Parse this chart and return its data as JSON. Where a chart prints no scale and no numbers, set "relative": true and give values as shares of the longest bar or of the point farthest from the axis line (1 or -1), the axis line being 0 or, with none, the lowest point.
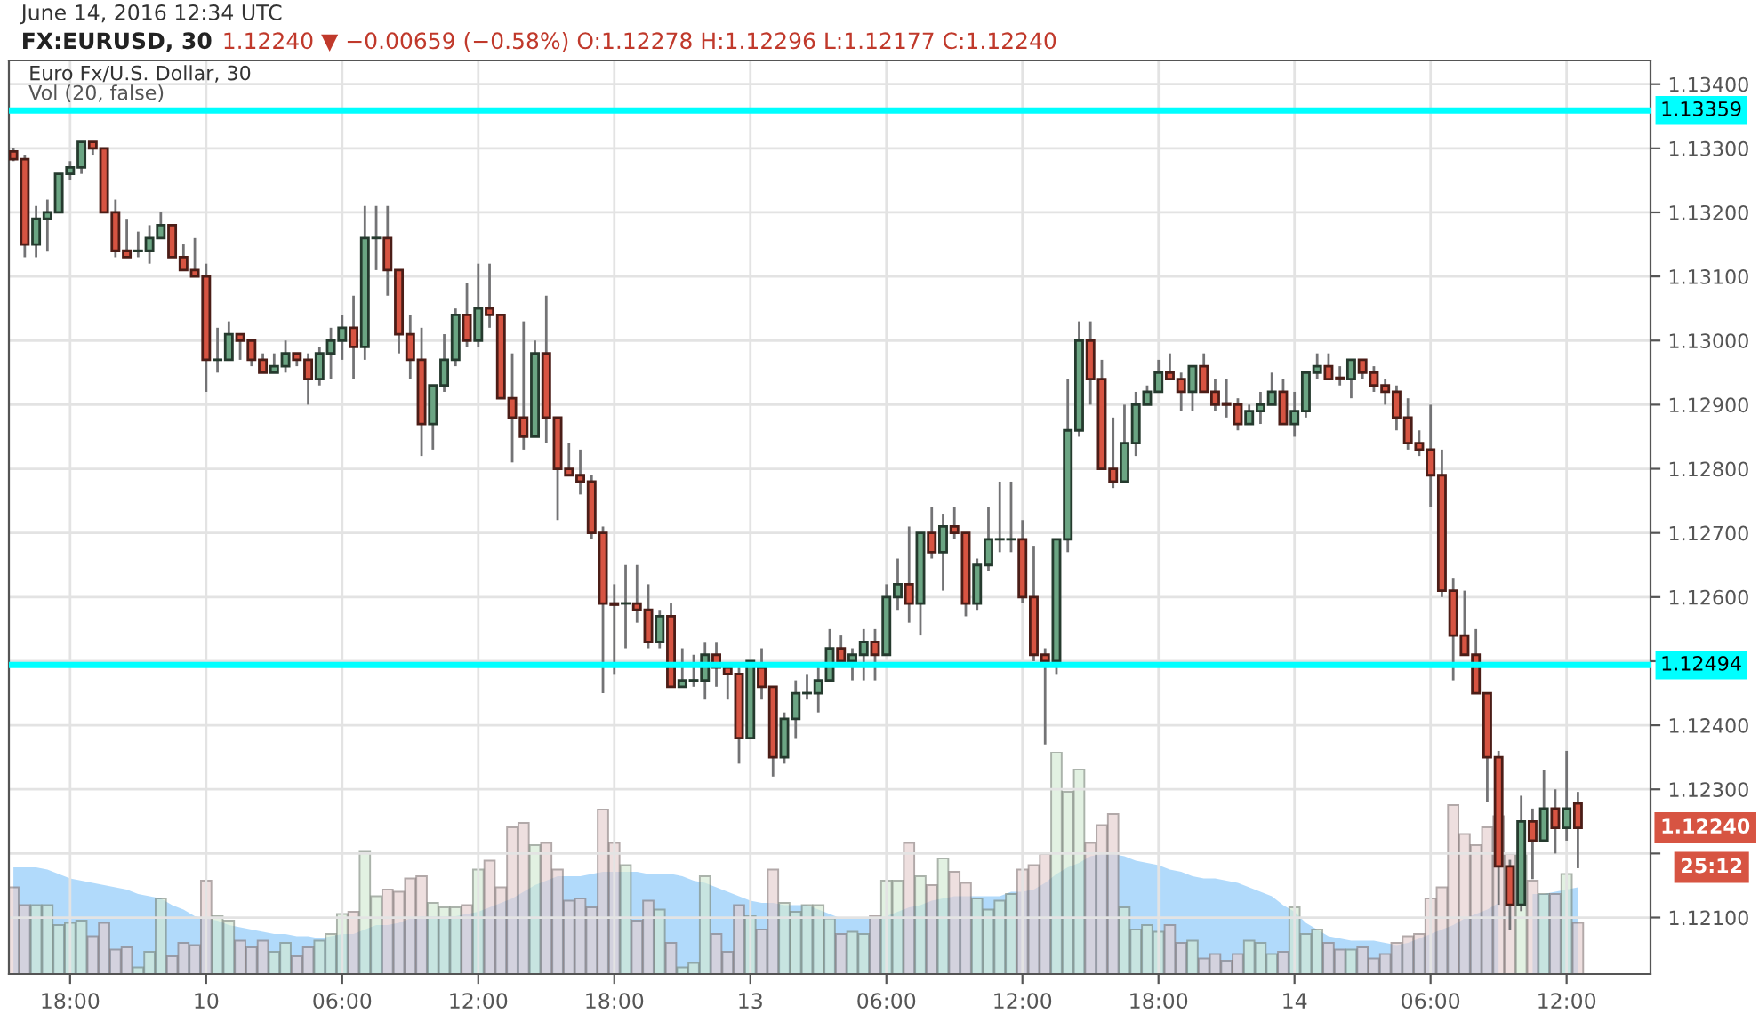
{
  "chart_data": [
    {
      "type": "candlestick",
      "title": "FX:EURUSD, 30",
      "subtitle": "1.12240 ▼ −0.00659 (−0.58%) O:1.12278 H:1.12296 L:1.12177 C:1.12240",
      "annotations": [
        "June 14, 2016 12:34 UTC",
        "Euro Fx/U.S. Dollar, 30",
        "Vol (20, false)",
        "1.12240",
        "25:12"
      ],
      "colors": [
        "#d75442",
        "#d75442",
        "#6ba583",
        "#6ba583",
        "#6ba583",
        "#6ba583",
        "#6ba583",
        "#d75442",
        "#d75442",
        "#d75442",
        "#d75442",
        "#6ba583",
        "#6ba583",
        "#6ba583",
        "#d75442",
        "#d75442",
        "#d75442",
        "#d75442",
        "#6ba583",
        "#6ba583",
        "#d75442",
        "#d75442",
        "#d75442",
        "#6ba583",
        "#6ba583",
        "#d75442",
        "#d75442",
        "#6ba583",
        "#6ba583",
        "#6ba583",
        "#d75442",
        "#6ba583",
        "#6ba583",
        "#d75442",
        "#d75442",
        "#d75442",
        "#d75442",
        "#6ba583",
        "#6ba583",
        "#6ba583",
        "#d75442",
        "#6ba583",
        "#d75442",
        "#d75442",
        "#d75442",
        "#d75442",
        "#6ba583",
        "#d75442",
        "#d75442",
        "#d75442",
        "#d75442",
        "#d75442",
        "#d75442",
        "#d75442",
        "#6ba583",
        "#d75442",
        "#d75442",
        "#6ba583",
        "#d75442",
        "#6ba583",
        "#6ba583",
        "#6ba583",
        "#d75442",
        "#d75442",
        "#d75442",
        "#6ba583",
        "#d75442",
        "#d75442",
        "#6ba583",
        "#6ba583",
        "#6ba583",
        "#6ba583",
        "#6ba583",
        "#d75442",
        "#6ba583",
        "#6ba583",
        "#d75442",
        "#6ba583",
        "#6ba583",
        "#d75442",
        "#6ba583",
        "#d75442",
        "#6ba583",
        "#d75442",
        "#d75442",
        "#6ba583",
        "#6ba583",
        "#6ba583",
        "#6ba583",
        "#d75442",
        "#d75442",
        "#d75442",
        "#6ba583",
        "#6ba583",
        "#6ba583",
        "#d75442",
        "#d75442",
        "#d75442",
        "#6ba583",
        "#6ba583",
        "#6ba583",
        "#6ba583",
        "#d75442",
        "#d75442",
        "#6ba583",
        "#d75442",
        "#d75442",
        "#d75442",
        "#d75442",
        "#6ba583",
        "#6ba583",
        "#6ba583",
        "#d75442",
        "#6ba583",
        "#6ba583",
        "#6ba583",
        "#d75442",
        "#d75442",
        "#6ba583",
        "#d75442",
        "#d75442",
        "#d75442",
        "#d75442",
        "#d75442",
        "#d75442",
        "#d75442",
        "#d75442",
        "#d75442",
        "#d75442",
        "#d75442",
        "#d75442",
        "#d75442",
        "#d75442",
        "#6ba583",
        "#d75442",
        "#6ba583",
        "#d75442",
        "#6ba583",
        "#d75442"
      ],
      "categories": [
        null,
        null,
        null,
        null,
        null,
        "18:00",
        null,
        null,
        null,
        null,
        null,
        null,
        null,
        null,
        null,
        null,
        null,
        "10",
        null,
        null,
        null,
        null,
        null,
        null,
        null,
        null,
        null,
        null,
        null,
        "06:00",
        null,
        null,
        null,
        null,
        null,
        null,
        null,
        null,
        null,
        null,
        null,
        "12:00",
        null,
        null,
        null,
        null,
        null,
        null,
        null,
        null,
        null,
        null,
        null,
        "18:00",
        null,
        null,
        null,
        null,
        null,
        null,
        null,
        null,
        null,
        null,
        null,
        "13",
        null,
        null,
        null,
        null,
        null,
        null,
        null,
        null,
        null,
        null,
        null,
        "06:00",
        null,
        null,
        null,
        null,
        null,
        null,
        null,
        null,
        null,
        null,
        null,
        "12:00",
        null,
        null,
        null,
        null,
        null,
        null,
        null,
        null,
        null,
        null,
        null,
        "18:00",
        null,
        null,
        null,
        null,
        null,
        null,
        null,
        null,
        null,
        null,
        null,
        "14",
        null,
        null,
        null,
        null,
        null,
        null,
        null,
        null,
        null,
        null,
        null,
        "06:00",
        null,
        null,
        null,
        null,
        null,
        null,
        null,
        null,
        null,
        null,
        null,
        "12:00",
        null
      ],
      "ohlc": [
        [
          1.13295,
          1.133,
          1.1328,
          1.13283
        ],
        [
          1.13283,
          1.1329,
          1.1313,
          1.1315
        ],
        [
          1.1315,
          1.1321,
          1.1313,
          1.1319
        ],
        [
          1.1319,
          1.1322,
          1.1314,
          1.132
        ],
        [
          1.132,
          1.1326,
          1.132,
          1.1326
        ],
        [
          1.1326,
          1.1328,
          1.1325,
          1.1327
        ],
        [
          1.1327,
          1.1331,
          1.1326,
          1.1331
        ],
        [
          1.1331,
          1.1331,
          1.1329,
          1.133
        ],
        [
          1.133,
          1.133,
          1.132,
          1.132
        ],
        [
          1.132,
          1.1322,
          1.1313,
          1.1314
        ],
        [
          1.1314,
          1.1319,
          1.1313,
          1.1313
        ],
        [
          1.1314,
          1.1317,
          1.1313,
          1.1314
        ],
        [
          1.1314,
          1.1318,
          1.1312,
          1.1316
        ],
        [
          1.1316,
          1.132,
          1.1316,
          1.1318
        ],
        [
          1.1318,
          1.1318,
          1.1313,
          1.1313
        ],
        [
          1.1313,
          1.1315,
          1.1311,
          1.1311
        ],
        [
          1.1311,
          1.1316,
          1.131,
          1.131
        ],
        [
          1.131,
          1.1312,
          1.1292,
          1.1297
        ],
        [
          1.1297,
          1.1302,
          1.1295,
          1.1297
        ],
        [
          1.1297,
          1.1303,
          1.1297,
          1.1301
        ],
        [
          1.1301,
          1.1301,
          1.1297,
          1.13
        ],
        [
          1.13,
          1.13,
          1.1296,
          1.1297
        ],
        [
          1.1297,
          1.1298,
          1.1295,
          1.1295
        ],
        [
          1.1295,
          1.1298,
          1.1295,
          1.1296
        ],
        [
          1.1296,
          1.13,
          1.1295,
          1.1298
        ],
        [
          1.1298,
          1.1298,
          1.1296,
          1.1297
        ],
        [
          1.1297,
          1.1298,
          1.129,
          1.1294
        ],
        [
          1.1294,
          1.1299,
          1.1293,
          1.1298
        ],
        [
          1.1298,
          1.1302,
          1.1294,
          1.13
        ],
        [
          1.13,
          1.1304,
          1.1297,
          1.1302
        ],
        [
          1.1302,
          1.1307,
          1.1294,
          1.1299
        ],
        [
          1.1299,
          1.1321,
          1.1297,
          1.1316
        ],
        [
          1.1316,
          1.1321,
          1.1311,
          1.1316
        ],
        [
          1.1316,
          1.1321,
          1.1307,
          1.1311
        ],
        [
          1.1311,
          1.1311,
          1.1298,
          1.1301
        ],
        [
          1.1301,
          1.1304,
          1.1294,
          1.1297
        ],
        [
          1.1297,
          1.1302,
          1.1282,
          1.1287
        ],
        [
          1.1287,
          1.1293,
          1.1283,
          1.1293
        ],
        [
          1.1293,
          1.1301,
          1.1292,
          1.1297
        ],
        [
          1.1297,
          1.1305,
          1.1296,
          1.1304
        ],
        [
          1.1304,
          1.1309,
          1.1299,
          1.13
        ],
        [
          1.13,
          1.1312,
          1.1299,
          1.1305
        ],
        [
          1.1305,
          1.1312,
          1.1302,
          1.1304
        ],
        [
          1.1304,
          1.1304,
          1.1291,
          1.1291
        ],
        [
          1.1291,
          1.1298,
          1.1281,
          1.1288
        ],
        [
          1.1288,
          1.1303,
          1.1283,
          1.1285
        ],
        [
          1.1285,
          1.13,
          1.1285,
          1.1298
        ],
        [
          1.1298,
          1.1307,
          1.1284,
          1.1288
        ],
        [
          1.1288,
          1.1288,
          1.1272,
          1.128
        ],
        [
          1.128,
          1.1284,
          1.1279,
          1.1279
        ],
        [
          1.1279,
          1.1283,
          1.1276,
          1.1278
        ],
        [
          1.1278,
          1.1279,
          1.1269,
          1.127
        ],
        [
          1.127,
          1.1271,
          1.1245,
          1.1259
        ],
        [
          1.1259,
          1.1262,
          1.1248,
          1.12588
        ],
        [
          1.1259,
          1.1265,
          1.1252,
          1.1259
        ],
        [
          1.1259,
          1.1265,
          1.1256,
          1.1258
        ],
        [
          1.1258,
          1.1262,
          1.1252,
          1.1253
        ],
        [
          1.1253,
          1.1258,
          1.1252,
          1.1257
        ],
        [
          1.1257,
          1.1259,
          1.1246,
          1.1246
        ],
        [
          1.1246,
          1.1252,
          1.1246,
          1.1247
        ],
        [
          1.1247,
          1.1251,
          1.1246,
          1.1247
        ],
        [
          1.1247,
          1.1253,
          1.1244,
          1.1251
        ],
        [
          1.1251,
          1.1253,
          1.1246,
          1.1249
        ],
        [
          1.1249,
          1.1249,
          1.1244,
          1.1248
        ],
        [
          1.1248,
          1.1249,
          1.1234,
          1.1238
        ],
        [
          1.1238,
          1.125,
          1.1238,
          1.125
        ],
        [
          1.1249,
          1.1252,
          1.1244,
          1.1246
        ],
        [
          1.1246,
          1.1246,
          1.1232,
          1.1235
        ],
        [
          1.1235,
          1.1242,
          1.1234,
          1.1241
        ],
        [
          1.1241,
          1.1247,
          1.1238,
          1.1245
        ],
        [
          1.1245,
          1.1248,
          1.1244,
          1.1245
        ],
        [
          1.1245,
          1.1249,
          1.1242,
          1.1247
        ],
        [
          1.1247,
          1.1255,
          1.1247,
          1.1252
        ],
        [
          1.1252,
          1.1254,
          1.125,
          1.125
        ],
        [
          1.125,
          1.1252,
          1.1247,
          1.1251
        ],
        [
          1.1251,
          1.1255,
          1.1247,
          1.1253
        ],
        [
          1.1253,
          1.1255,
          1.1247,
          1.1251
        ],
        [
          1.1251,
          1.1262,
          1.1251,
          1.126
        ],
        [
          1.126,
          1.1266,
          1.1258,
          1.1262
        ],
        [
          1.1262,
          1.1271,
          1.1256,
          1.1259
        ],
        [
          1.1259,
          1.127,
          1.1254,
          1.127
        ],
        [
          1.127,
          1.1274,
          1.1266,
          1.1267
        ],
        [
          1.1267,
          1.1273,
          1.1261,
          1.1271
        ],
        [
          1.1271,
          1.1274,
          1.1269,
          1.127
        ],
        [
          1.127,
          1.127,
          1.1257,
          1.1259
        ],
        [
          1.1259,
          1.1266,
          1.1258,
          1.1265
        ],
        [
          1.1265,
          1.1274,
          1.1264,
          1.1269
        ],
        [
          1.1269,
          1.1278,
          1.1267,
          1.1269
        ],
        [
          1.1269,
          1.1278,
          1.1267,
          1.1269
        ],
        [
          1.1269,
          1.1272,
          1.1259,
          1.126
        ],
        [
          1.126,
          1.1268,
          1.125,
          1.1251
        ],
        [
          1.1251,
          1.1252,
          1.1237,
          1.125
        ],
        [
          1.125,
          1.1269,
          1.1248,
          1.1269
        ],
        [
          1.1269,
          1.1294,
          1.1267,
          1.1286
        ],
        [
          1.1286,
          1.1303,
          1.1285,
          1.13
        ],
        [
          1.13,
          1.1303,
          1.129,
          1.1294
        ],
        [
          1.1294,
          1.1297,
          1.128,
          1.128
        ],
        [
          1.128,
          1.1288,
          1.1277,
          1.1278
        ],
        [
          1.1278,
          1.129,
          1.1278,
          1.1284
        ],
        [
          1.1284,
          1.1292,
          1.1282,
          1.129
        ],
        [
          1.129,
          1.1293,
          1.129,
          1.1292
        ],
        [
          1.1292,
          1.1297,
          1.1292,
          1.1295
        ],
        [
          1.1295,
          1.1298,
          1.1294,
          1.1294
        ],
        [
          1.1294,
          1.1295,
          1.1289,
          1.1292
        ],
        [
          1.1292,
          1.1296,
          1.1289,
          1.1296
        ],
        [
          1.1296,
          1.1298,
          1.1292,
          1.1292
        ],
        [
          1.1292,
          1.1294,
          1.1289,
          1.129
        ],
        [
          1.12902,
          1.1294,
          1.1288,
          1.129
        ],
        [
          1.129,
          1.1291,
          1.1286,
          1.1287
        ],
        [
          1.1287,
          1.129,
          1.1287,
          1.1289
        ],
        [
          1.1289,
          1.1292,
          1.1287,
          1.129
        ],
        [
          1.129,
          1.1295,
          1.129,
          1.1292
        ],
        [
          1.1292,
          1.1294,
          1.1287,
          1.1287
        ],
        [
          1.1287,
          1.1292,
          1.1285,
          1.1289
        ],
        [
          1.1289,
          1.1295,
          1.1288,
          1.1295
        ],
        [
          1.1295,
          1.1298,
          1.1294,
          1.1296
        ],
        [
          1.1296,
          1.1298,
          1.1294,
          1.1294
        ],
        [
          1.12942,
          1.1296,
          1.1293,
          1.1294
        ],
        [
          1.1294,
          1.1297,
          1.1291,
          1.1297
        ],
        [
          1.1297,
          1.1297,
          1.1294,
          1.1295
        ],
        [
          1.1295,
          1.1296,
          1.1292,
          1.1293
        ],
        [
          1.1293,
          1.1294,
          1.129,
          1.1292
        ],
        [
          1.1292,
          1.1293,
          1.1286,
          1.1288
        ],
        [
          1.1288,
          1.1291,
          1.1283,
          1.1284
        ],
        [
          1.1284,
          1.1286,
          1.1282,
          1.1283
        ],
        [
          1.1283,
          1.129,
          1.1274,
          1.1279
        ],
        [
          1.1279,
          1.1283,
          1.126,
          1.1261
        ],
        [
          1.1261,
          1.1263,
          1.1247,
          1.1254
        ],
        [
          1.1254,
          1.1261,
          1.1251,
          1.1251
        ],
        [
          1.1251,
          1.1255,
          1.1245,
          1.1245
        ],
        [
          1.1245,
          1.1245,
          1.1228,
          1.1235
        ],
        [
          1.1235,
          1.1236,
          1.1212,
          1.1218
        ],
        [
          1.1218,
          1.1219,
          1.1208,
          1.1212
        ],
        [
          1.1212,
          1.1229,
          1.1211,
          1.1225
        ],
        [
          1.1225,
          1.1227,
          1.1216,
          1.1222
        ],
        [
          1.1222,
          1.1233,
          1.1222,
          1.1227
        ],
        [
          1.1227,
          1.123,
          1.122,
          1.1224
        ],
        [
          1.1224,
          1.1236,
          1.1222,
          1.1227
        ],
        [
          1.12278,
          1.12296,
          1.12177,
          1.1224
        ]
      ],
      "ylim": [
        1.12012,
        1.13437
      ],
      "yticks": [
        {
          "value": 1.121,
          "label": "1.12100"
        },
        {
          "value": 1.122,
          "label": null
        },
        {
          "value": 1.123,
          "label": "1.12300"
        },
        {
          "value": 1.124,
          "label": "1.12400"
        },
        {
          "value": 1.125,
          "label": null
        },
        {
          "value": 1.126,
          "label": "1.12600"
        },
        {
          "value": 1.127,
          "label": "1.12700"
        },
        {
          "value": 1.128,
          "label": "1.12800"
        },
        {
          "value": 1.129,
          "label": "1.12900"
        },
        {
          "value": 1.13,
          "label": "1.13000"
        },
        {
          "value": 1.131,
          "label": "1.13100"
        },
        {
          "value": 1.132,
          "label": "1.13200"
        },
        {
          "value": 1.133,
          "label": "1.13300"
        },
        {
          "value": 1.134,
          "label": "1.13400"
        }
      ],
      "ref_lines": [
        {
          "axis": "y",
          "value": 1.13359,
          "label": "1.13359",
          "color": "#00ffff"
        },
        {
          "axis": "y",
          "value": 1.12494,
          "label": "1.12494",
          "color": "#00ffff"
        }
      ],
      "grid": true
    },
    {
      "type": "bar",
      "relative": true,
      "categories": [
        null,
        null,
        null,
        null,
        null,
        null,
        null,
        null,
        null,
        null,
        null,
        null,
        null,
        null,
        null,
        null,
        null,
        null,
        null,
        null,
        null,
        null,
        null,
        null,
        null,
        null,
        null,
        null,
        null,
        null,
        null,
        null,
        null,
        null,
        null,
        null,
        null,
        null,
        null,
        null,
        null,
        null,
        null,
        null,
        null,
        null,
        null,
        null,
        null,
        null,
        null,
        null,
        null,
        null,
        null,
        null,
        null,
        null,
        null,
        null,
        null,
        null,
        null,
        null,
        null,
        null,
        null,
        null,
        null,
        null,
        null,
        null,
        null,
        null,
        null,
        null,
        null,
        null,
        null,
        null,
        null,
        null,
        null,
        null,
        null,
        null,
        null,
        null,
        null,
        null,
        null,
        null,
        null,
        null,
        null,
        null,
        null,
        null,
        null,
        null,
        null,
        null,
        null,
        null,
        null,
        null,
        null,
        null,
        null,
        null,
        null,
        null,
        null,
        null,
        null,
        null,
        null,
        null,
        null,
        null,
        null,
        null,
        null,
        null,
        null,
        null,
        null,
        null,
        null,
        null,
        null,
        null,
        null,
        null,
        null,
        null,
        null,
        null,
        null
      ],
      "series": [
        {
          "type": "bar",
          "values": [
            0.39,
            0.31,
            0.31,
            0.31,
            0.22,
            0.23,
            0.24,
            0.17,
            0.23,
            0.11,
            0.12,
            0.03,
            0.1,
            0.34,
            0.08,
            0.14,
            0.13,
            0.42,
            0.26,
            0.24,
            0.15,
            0.12,
            0.15,
            0.1,
            0.14,
            0.08,
            0.12,
            0.15,
            0.18,
            0.27,
            0.28,
            0.55,
            0.35,
            0.38,
            0.37,
            0.43,
            0.44,
            0.32,
            0.3,
            0.3,
            0.31,
            0.47,
            0.51,
            0.39,
            0.66,
            0.68,
            0.58,
            0.59,
            0.47,
            0.33,
            0.34,
            0.3,
            0.74,
            0.59,
            0.49,
            0.24,
            0.33,
            0.29,
            0.14,
            0.03,
            0.05,
            0.44,
            0.18,
            0.1,
            0.31,
            0.26,
            0.2,
            0.47,
            0.32,
            0.28,
            0.31,
            0.31,
            0.25,
            0.18,
            0.19,
            0.18,
            0.26,
            0.42,
            0.42,
            0.59,
            0.44,
            0.4,
            0.52,
            0.46,
            0.41,
            0.34,
            0.29,
            0.33,
            0.36,
            0.47,
            0.49,
            0.54,
            1.0,
            0.82,
            0.92,
            0.59,
            0.67,
            0.72,
            0.3,
            0.2,
            0.22,
            0.19,
            0.22,
            0.14,
            0.15,
            0.07,
            0.09,
            0.06,
            0.09,
            0.15,
            0.14,
            0.09,
            0.1,
            0.3,
            0.18,
            0.2,
            0.14,
            0.11,
            0.11,
            0.12,
            0.07,
            0.09,
            0.14,
            0.17,
            0.18,
            0.34,
            0.39,
            0.76,
            0.63,
            0.58,
            0.66,
            0.71,
            0.54,
            0.54,
            0.42,
            0.36,
            0.36,
            0.45,
            0.23
          ],
          "colors": [
            "#e6cfcf",
            "#e6cfcf",
            "#d3ead3",
            "#d3ead3",
            "#d3ead3",
            "#d3ead3",
            "#d3ead3",
            "#e6cfcf",
            "#e6cfcf",
            "#e6cfcf",
            "#e6cfcf",
            "#d3ead3",
            "#d3ead3",
            "#d3ead3",
            "#e6cfcf",
            "#e6cfcf",
            "#e6cfcf",
            "#e6cfcf",
            "#d3ead3",
            "#d3ead3",
            "#e6cfcf",
            "#e6cfcf",
            "#e6cfcf",
            "#d3ead3",
            "#d3ead3",
            "#e6cfcf",
            "#e6cfcf",
            "#d3ead3",
            "#d3ead3",
            "#d3ead3",
            "#e6cfcf",
            "#d3ead3",
            "#d3ead3",
            "#e6cfcf",
            "#e6cfcf",
            "#e6cfcf",
            "#e6cfcf",
            "#d3ead3",
            "#d3ead3",
            "#d3ead3",
            "#e6cfcf",
            "#d3ead3",
            "#e6cfcf",
            "#e6cfcf",
            "#e6cfcf",
            "#e6cfcf",
            "#d3ead3",
            "#e6cfcf",
            "#e6cfcf",
            "#e6cfcf",
            "#e6cfcf",
            "#e6cfcf",
            "#e6cfcf",
            "#e6cfcf",
            "#d3ead3",
            "#e6cfcf",
            "#e6cfcf",
            "#d3ead3",
            "#e6cfcf",
            "#d3ead3",
            "#d3ead3",
            "#d3ead3",
            "#e6cfcf",
            "#e6cfcf",
            "#e6cfcf",
            "#d3ead3",
            "#e6cfcf",
            "#e6cfcf",
            "#d3ead3",
            "#d3ead3",
            "#d3ead3",
            "#d3ead3",
            "#d3ead3",
            "#e6cfcf",
            "#d3ead3",
            "#d3ead3",
            "#e6cfcf",
            "#d3ead3",
            "#d3ead3",
            "#e6cfcf",
            "#d3ead3",
            "#e6cfcf",
            "#d3ead3",
            "#e6cfcf",
            "#e6cfcf",
            "#d3ead3",
            "#d3ead3",
            "#d3ead3",
            "#d3ead3",
            "#e6cfcf",
            "#e6cfcf",
            "#e6cfcf",
            "#d3ead3",
            "#d3ead3",
            "#d3ead3",
            "#e6cfcf",
            "#e6cfcf",
            "#e6cfcf",
            "#d3ead3",
            "#d3ead3",
            "#d3ead3",
            "#d3ead3",
            "#e6cfcf",
            "#e6cfcf",
            "#d3ead3",
            "#e6cfcf",
            "#e6cfcf",
            "#e6cfcf",
            "#e6cfcf",
            "#d3ead3",
            "#d3ead3",
            "#d3ead3",
            "#e6cfcf",
            "#d3ead3",
            "#d3ead3",
            "#d3ead3",
            "#e6cfcf",
            "#e6cfcf",
            "#d3ead3",
            "#e6cfcf",
            "#e6cfcf",
            "#e6cfcf",
            "#e6cfcf",
            "#e6cfcf",
            "#e6cfcf",
            "#e6cfcf",
            "#e6cfcf",
            "#e6cfcf",
            "#e6cfcf",
            "#e6cfcf",
            "#e6cfcf",
            "#e6cfcf",
            "#e6cfcf",
            "#d3ead3",
            "#e6cfcf",
            "#d3ead3",
            "#e6cfcf",
            "#d3ead3",
            "#e6cfcf"
          ]
        },
        {
          "type": "area",
          "color": "#90caf9",
          "values": [
            0.48,
            0.48,
            0.48,
            0.47,
            0.45,
            0.43,
            0.42,
            0.41,
            0.4,
            0.39,
            0.38,
            0.36,
            0.35,
            0.34,
            0.31,
            0.29,
            0.26,
            0.25,
            0.24,
            0.22,
            0.21,
            0.2,
            0.19,
            0.18,
            0.18,
            0.17,
            0.17,
            0.16,
            0.17,
            0.18,
            0.18,
            0.2,
            0.22,
            0.22,
            0.23,
            0.25,
            0.26,
            0.26,
            0.26,
            0.26,
            0.27,
            0.28,
            0.3,
            0.32,
            0.34,
            0.37,
            0.4,
            0.42,
            0.44,
            0.44,
            0.44,
            0.45,
            0.46,
            0.46,
            0.46,
            0.46,
            0.45,
            0.45,
            0.45,
            0.44,
            0.42,
            0.41,
            0.39,
            0.37,
            0.35,
            0.33,
            0.32,
            0.32,
            0.31,
            0.31,
            0.31,
            0.29,
            0.27,
            0.25,
            0.25,
            0.25,
            0.25,
            0.26,
            0.28,
            0.3,
            0.31,
            0.33,
            0.34,
            0.35,
            0.35,
            0.35,
            0.35,
            0.35,
            0.37,
            0.37,
            0.38,
            0.41,
            0.45,
            0.48,
            0.5,
            0.53,
            0.54,
            0.54,
            0.53,
            0.51,
            0.5,
            0.49,
            0.47,
            0.46,
            0.44,
            0.43,
            0.43,
            0.42,
            0.41,
            0.39,
            0.37,
            0.35,
            0.31,
            0.28,
            0.23,
            0.2,
            0.17,
            0.16,
            0.15,
            0.15,
            0.15,
            0.14,
            0.13,
            0.14,
            0.16,
            0.18,
            0.2,
            0.22,
            0.25,
            0.27,
            0.29,
            0.32,
            null,
            null,
            0.36,
            0.36,
            0.37,
            0.38,
            0.39
          ]
        }
      ]
    }
  ]
}
